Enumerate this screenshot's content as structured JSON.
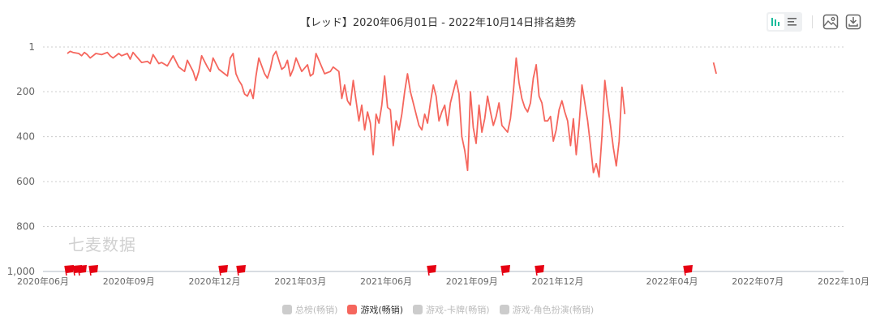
{
  "header": {
    "title": "【レッド】2020年06月01日 - 2022年10月14日排名趋势"
  },
  "toolbar": {
    "view_toggle": [
      {
        "icon": "bar-chart-icon",
        "active": true
      },
      {
        "icon": "list-icon",
        "active": false
      }
    ],
    "save_image_icon": "image-icon",
    "download_icon": "download-icon"
  },
  "watermark": "七麦数据",
  "legend": [
    {
      "label": "总榜(畅销)",
      "active": false,
      "color": "#cccccc"
    },
    {
      "label": "游戏(畅销)",
      "active": true,
      "color": "#f5665d"
    },
    {
      "label": "游戏-卡牌(畅销)",
      "active": false,
      "color": "#cccccc"
    },
    {
      "label": "游戏-角色扮演(畅销)",
      "active": false,
      "color": "#cccccc"
    }
  ],
  "colors": {
    "series": "#f5665d",
    "flag": "#e60012",
    "grid": "#cccccc",
    "axis_text": "#666666"
  },
  "chart_data": {
    "type": "line",
    "title": "【レッド】2020年06月01日 - 2022年10月14日排名趋势",
    "xlabel": "",
    "ylabel": "",
    "y_inverted": true,
    "ylim": [
      1,
      1000
    ],
    "yticks": [
      "1",
      "200",
      "400",
      "600",
      "800",
      "1,000"
    ],
    "xticks": [
      "2020年06月",
      "2020年09月",
      "2020年12月",
      "2021年03月",
      "2021年06月",
      "2021年09月",
      "2021年12月",
      "2022年04月",
      "2022年07月",
      "2022年10月"
    ],
    "grid": true,
    "legend_position": "bottom",
    "series": [
      {
        "name": "游戏(畅销)",
        "note": "approximate rank values traced from chart; x as fractional month index from 2020-06",
        "segments": [
          [
            [
              1.0,
              30
            ],
            [
              1.1,
              20
            ],
            [
              1.2,
              25
            ],
            [
              1.4,
              30
            ],
            [
              1.5,
              40
            ],
            [
              1.6,
              25
            ],
            [
              1.7,
              35
            ],
            [
              1.8,
              50
            ],
            [
              1.9,
              40
            ],
            [
              2.0,
              30
            ],
            [
              2.2,
              35
            ],
            [
              2.4,
              25
            ],
            [
              2.5,
              40
            ],
            [
              2.6,
              50
            ],
            [
              2.8,
              30
            ],
            [
              2.9,
              40
            ],
            [
              3.1,
              30
            ],
            [
              3.2,
              55
            ],
            [
              3.3,
              25
            ],
            [
              3.5,
              55
            ],
            [
              3.6,
              70
            ],
            [
              3.8,
              65
            ],
            [
              3.9,
              75
            ],
            [
              4.0,
              35
            ],
            [
              4.2,
              75
            ],
            [
              4.3,
              70
            ],
            [
              4.5,
              85
            ],
            [
              4.7,
              40
            ],
            [
              4.9,
              90
            ],
            [
              5.1,
              110
            ],
            [
              5.2,
              60
            ],
            [
              5.4,
              110
            ],
            [
              5.5,
              150
            ],
            [
              5.6,
              110
            ],
            [
              5.7,
              40
            ],
            [
              5.9,
              90
            ],
            [
              6.0,
              110
            ],
            [
              6.1,
              50
            ],
            [
              6.3,
              100
            ],
            [
              6.5,
              120
            ],
            [
              6.6,
              130
            ],
            [
              6.7,
              50
            ],
            [
              6.8,
              30
            ],
            [
              6.9,
              120
            ],
            [
              7.0,
              150
            ],
            [
              7.1,
              170
            ],
            [
              7.2,
              210
            ],
            [
              7.3,
              220
            ],
            [
              7.4,
              190
            ],
            [
              7.5,
              230
            ],
            [
              7.6,
              130
            ],
            [
              7.7,
              50
            ],
            [
              7.9,
              120
            ],
            [
              8.0,
              140
            ],
            [
              8.1,
              100
            ],
            [
              8.2,
              40
            ],
            [
              8.3,
              20
            ],
            [
              8.5,
              100
            ],
            [
              8.6,
              90
            ],
            [
              8.7,
              60
            ],
            [
              8.8,
              130
            ],
            [
              8.9,
              100
            ],
            [
              9.0,
              50
            ],
            [
              9.2,
              110
            ],
            [
              9.4,
              80
            ],
            [
              9.5,
              130
            ],
            [
              9.6,
              120
            ],
            [
              9.7,
              30
            ],
            [
              9.8,
              60
            ],
            [
              9.9,
              90
            ],
            [
              10.0,
              120
            ],
            [
              10.2,
              110
            ],
            [
              10.3,
              90
            ],
            [
              10.5,
              110
            ],
            [
              10.6,
              230
            ],
            [
              10.7,
              170
            ],
            [
              10.8,
              240
            ],
            [
              10.9,
              260
            ],
            [
              11.0,
              150
            ],
            [
              11.2,
              330
            ],
            [
              11.3,
              260
            ],
            [
              11.4,
              370
            ],
            [
              11.5,
              290
            ],
            [
              11.6,
              340
            ],
            [
              11.7,
              480
            ],
            [
              11.8,
              300
            ],
            [
              11.9,
              340
            ],
            [
              12.0,
              260
            ],
            [
              12.1,
              130
            ],
            [
              12.2,
              270
            ],
            [
              12.3,
              280
            ],
            [
              12.4,
              440
            ],
            [
              12.5,
              330
            ],
            [
              12.6,
              370
            ],
            [
              12.7,
              300
            ],
            [
              12.8,
              200
            ],
            [
              12.9,
              120
            ],
            [
              13.0,
              200
            ],
            [
              13.1,
              250
            ],
            [
              13.2,
              300
            ],
            [
              13.3,
              350
            ],
            [
              13.4,
              370
            ],
            [
              13.5,
              300
            ],
            [
              13.6,
              340
            ],
            [
              13.7,
              250
            ],
            [
              13.8,
              170
            ],
            [
              13.9,
              220
            ],
            [
              14.0,
              330
            ],
            [
              14.1,
              290
            ],
            [
              14.2,
              260
            ],
            [
              14.3,
              350
            ],
            [
              14.4,
              250
            ],
            [
              14.6,
              150
            ],
            [
              14.7,
              210
            ],
            [
              14.8,
              400
            ],
            [
              14.9,
              460
            ],
            [
              15.0,
              550
            ],
            [
              15.1,
              200
            ],
            [
              15.2,
              360
            ],
            [
              15.3,
              430
            ],
            [
              15.4,
              260
            ],
            [
              15.5,
              380
            ],
            [
              15.6,
              320
            ],
            [
              15.7,
              220
            ],
            [
              15.8,
              290
            ],
            [
              15.9,
              350
            ],
            [
              16.0,
              310
            ],
            [
              16.1,
              250
            ],
            [
              16.2,
              350
            ],
            [
              16.4,
              380
            ],
            [
              16.5,
              320
            ],
            [
              16.6,
              200
            ],
            [
              16.7,
              50
            ],
            [
              16.8,
              160
            ],
            [
              16.9,
              230
            ],
            [
              17.0,
              270
            ],
            [
              17.1,
              290
            ],
            [
              17.2,
              250
            ],
            [
              17.3,
              140
            ],
            [
              17.4,
              80
            ],
            [
              17.5,
              220
            ],
            [
              17.6,
              250
            ],
            [
              17.7,
              330
            ],
            [
              17.8,
              330
            ],
            [
              17.9,
              310
            ],
            [
              18.0,
              420
            ],
            [
              18.1,
              370
            ],
            [
              18.2,
              280
            ],
            [
              18.3,
              240
            ],
            [
              18.4,
              290
            ],
            [
              18.5,
              330
            ],
            [
              18.6,
              440
            ],
            [
              18.7,
              320
            ],
            [
              18.8,
              480
            ],
            [
              18.9,
              350
            ],
            [
              19.0,
              170
            ],
            [
              19.1,
              250
            ],
            [
              19.2,
              330
            ],
            [
              19.3,
              440
            ],
            [
              19.4,
              560
            ],
            [
              19.5,
              520
            ],
            [
              19.6,
              580
            ],
            [
              19.7,
              400
            ],
            [
              19.8,
              150
            ],
            [
              19.9,
              260
            ],
            [
              20.0,
              350
            ],
            [
              20.1,
              450
            ],
            [
              20.2,
              530
            ],
            [
              20.3,
              420
            ],
            [
              20.4,
              180
            ],
            [
              20.5,
              300
            ]
          ],
          [
            [
              23.6,
              70
            ],
            [
              23.7,
              120
            ]
          ]
        ]
      }
    ],
    "markers": {
      "type": "flag",
      "approx_positions": [
        "2020-07",
        "2020-07",
        "2020-07",
        "2020-08",
        "2020-12",
        "2021-01",
        "2021-07",
        "2021-10",
        "2021-11",
        "2022-04"
      ]
    }
  }
}
